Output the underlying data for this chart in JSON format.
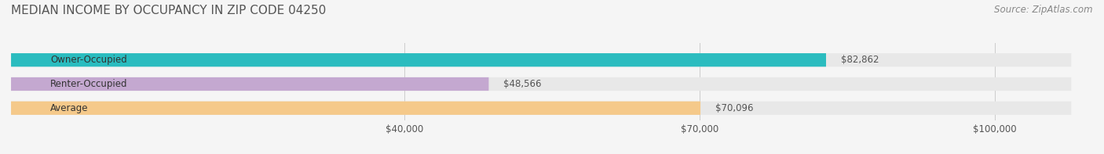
{
  "title": "MEDIAN INCOME BY OCCUPANCY IN ZIP CODE 04250",
  "source": "Source: ZipAtlas.com",
  "categories": [
    "Owner-Occupied",
    "Renter-Occupied",
    "Average"
  ],
  "values": [
    82862,
    48566,
    70096
  ],
  "bar_colors": [
    "#2bbcbf",
    "#c4a8d0",
    "#f5c98a"
  ],
  "label_colors": [
    "#ffffff",
    "#555555",
    "#555555"
  ],
  "value_labels": [
    "$82,862",
    "$48,566",
    "$70,096"
  ],
  "x_ticks": [
    40000,
    70000,
    100000
  ],
  "x_tick_labels": [
    "$40,000",
    "$70,000",
    "$100,000"
  ],
  "xlim": [
    0,
    110000
  ],
  "background_color": "#f5f5f5",
  "bar_background_color": "#e8e8e8",
  "title_fontsize": 11,
  "source_fontsize": 8.5,
  "label_fontsize": 8.5,
  "value_fontsize": 8.5,
  "tick_fontsize": 8.5
}
